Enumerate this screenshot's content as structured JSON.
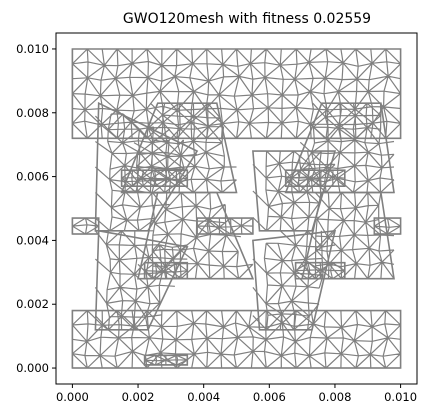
{
  "chart_data": {
    "type": "mesh",
    "title": "GWO120mesh with fitness 0.02559",
    "xlabel": "",
    "ylabel": "",
    "xlim": [
      -0.0005,
      0.0105
    ],
    "ylim": [
      -0.0005,
      0.0105
    ],
    "xticks": [
      0.0,
      0.002,
      0.004,
      0.006,
      0.008,
      0.01
    ],
    "yticks": [
      0.0,
      0.002,
      0.004,
      0.006,
      0.008,
      0.01
    ],
    "xtick_labels": [
      "0.000",
      "0.002",
      "0.004",
      "0.006",
      "0.008",
      "0.010"
    ],
    "ytick_labels": [
      "0.000",
      "0.002",
      "0.004",
      "0.006",
      "0.008",
      "0.010"
    ],
    "grid": false,
    "mesh_color": "#808080",
    "bands": [
      {
        "x": [
          0.0,
          0.01
        ],
        "y": [
          0.0072,
          0.01
        ]
      },
      {
        "x": [
          0.0,
          0.01
        ],
        "y": [
          0.0,
          0.0018
        ]
      }
    ],
    "triangles_up": [
      {
        "apex": [
          0.0035,
          0.0083
        ],
        "base": [
          0.0015,
          0.0055
        ],
        "base_right": [
          0.005,
          0.0055
        ]
      },
      {
        "apex": [
          0.0085,
          0.0083
        ],
        "base": [
          0.0065,
          0.0055
        ],
        "base_right": [
          0.0098,
          0.0055
        ]
      },
      {
        "apex": [
          0.0035,
          0.0055
        ],
        "base": [
          0.002,
          0.0028
        ],
        "base_right": [
          0.0055,
          0.0028
        ]
      },
      {
        "apex": [
          0.0085,
          0.0055
        ],
        "base": [
          0.007,
          0.0028
        ],
        "base_right": [
          0.0098,
          0.0028
        ]
      }
    ],
    "triangles_down": [
      {
        "top_left": [
          0.0008,
          0.0083
        ],
        "top_right": [
          0.0038,
          0.0068
        ],
        "apex": [
          0.0015,
          0.0043
        ]
      },
      {
        "top_left": [
          0.0055,
          0.0068
        ],
        "top_right": [
          0.008,
          0.0068
        ],
        "apex": [
          0.0065,
          0.0043
        ]
      },
      {
        "top_left": [
          0.0008,
          0.0043
        ],
        "top_right": [
          0.0035,
          0.0038
        ],
        "apex": [
          0.0015,
          0.0012
        ]
      },
      {
        "top_left": [
          0.0055,
          0.004
        ],
        "top_right": [
          0.008,
          0.0043
        ],
        "apex": [
          0.0065,
          0.0012
        ]
      }
    ],
    "bridges": [
      {
        "x": [
          0.0015,
          0.0035
        ],
        "y": [
          0.0057,
          0.0062
        ]
      },
      {
        "x": [
          0.0065,
          0.0083
        ],
        "y": [
          0.0057,
          0.0062
        ]
      },
      {
        "x": [
          0.0,
          0.0008
        ],
        "y": [
          0.0042,
          0.0047
        ]
      },
      {
        "x": [
          0.0092,
          0.01
        ],
        "y": [
          0.0042,
          0.0047
        ]
      },
      {
        "x": [
          0.0038,
          0.0055
        ],
        "y": [
          0.0042,
          0.0047
        ]
      },
      {
        "x": [
          0.0022,
          0.0035
        ],
        "y": [
          0.0028,
          0.0033
        ]
      },
      {
        "x": [
          0.0068,
          0.0083
        ],
        "y": [
          0.0028,
          0.0033
        ]
      },
      {
        "x": [
          0.0022,
          0.0035
        ],
        "y": [
          0.0001,
          0.0004
        ]
      }
    ]
  }
}
